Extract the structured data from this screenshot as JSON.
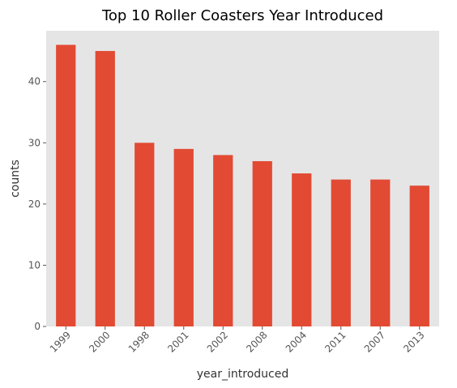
{
  "chart_data": {
    "type": "bar",
    "title": "Top 10 Roller Coasters Year Introduced",
    "xlabel": "year_introduced",
    "ylabel": "counts",
    "categories": [
      "1999",
      "2000",
      "1998",
      "2001",
      "2002",
      "2008",
      "2004",
      "2011",
      "2007",
      "2013"
    ],
    "values": [
      46,
      45,
      30,
      29,
      28,
      27,
      25,
      24,
      24,
      23
    ],
    "ylim": [
      0,
      48.3
    ],
    "yticks": [
      0,
      10,
      20,
      30,
      40
    ],
    "grid": false,
    "legend": "none",
    "colors": {
      "bar": "#E24A33",
      "background": "#E5E5E5",
      "text": "#555555"
    }
  }
}
